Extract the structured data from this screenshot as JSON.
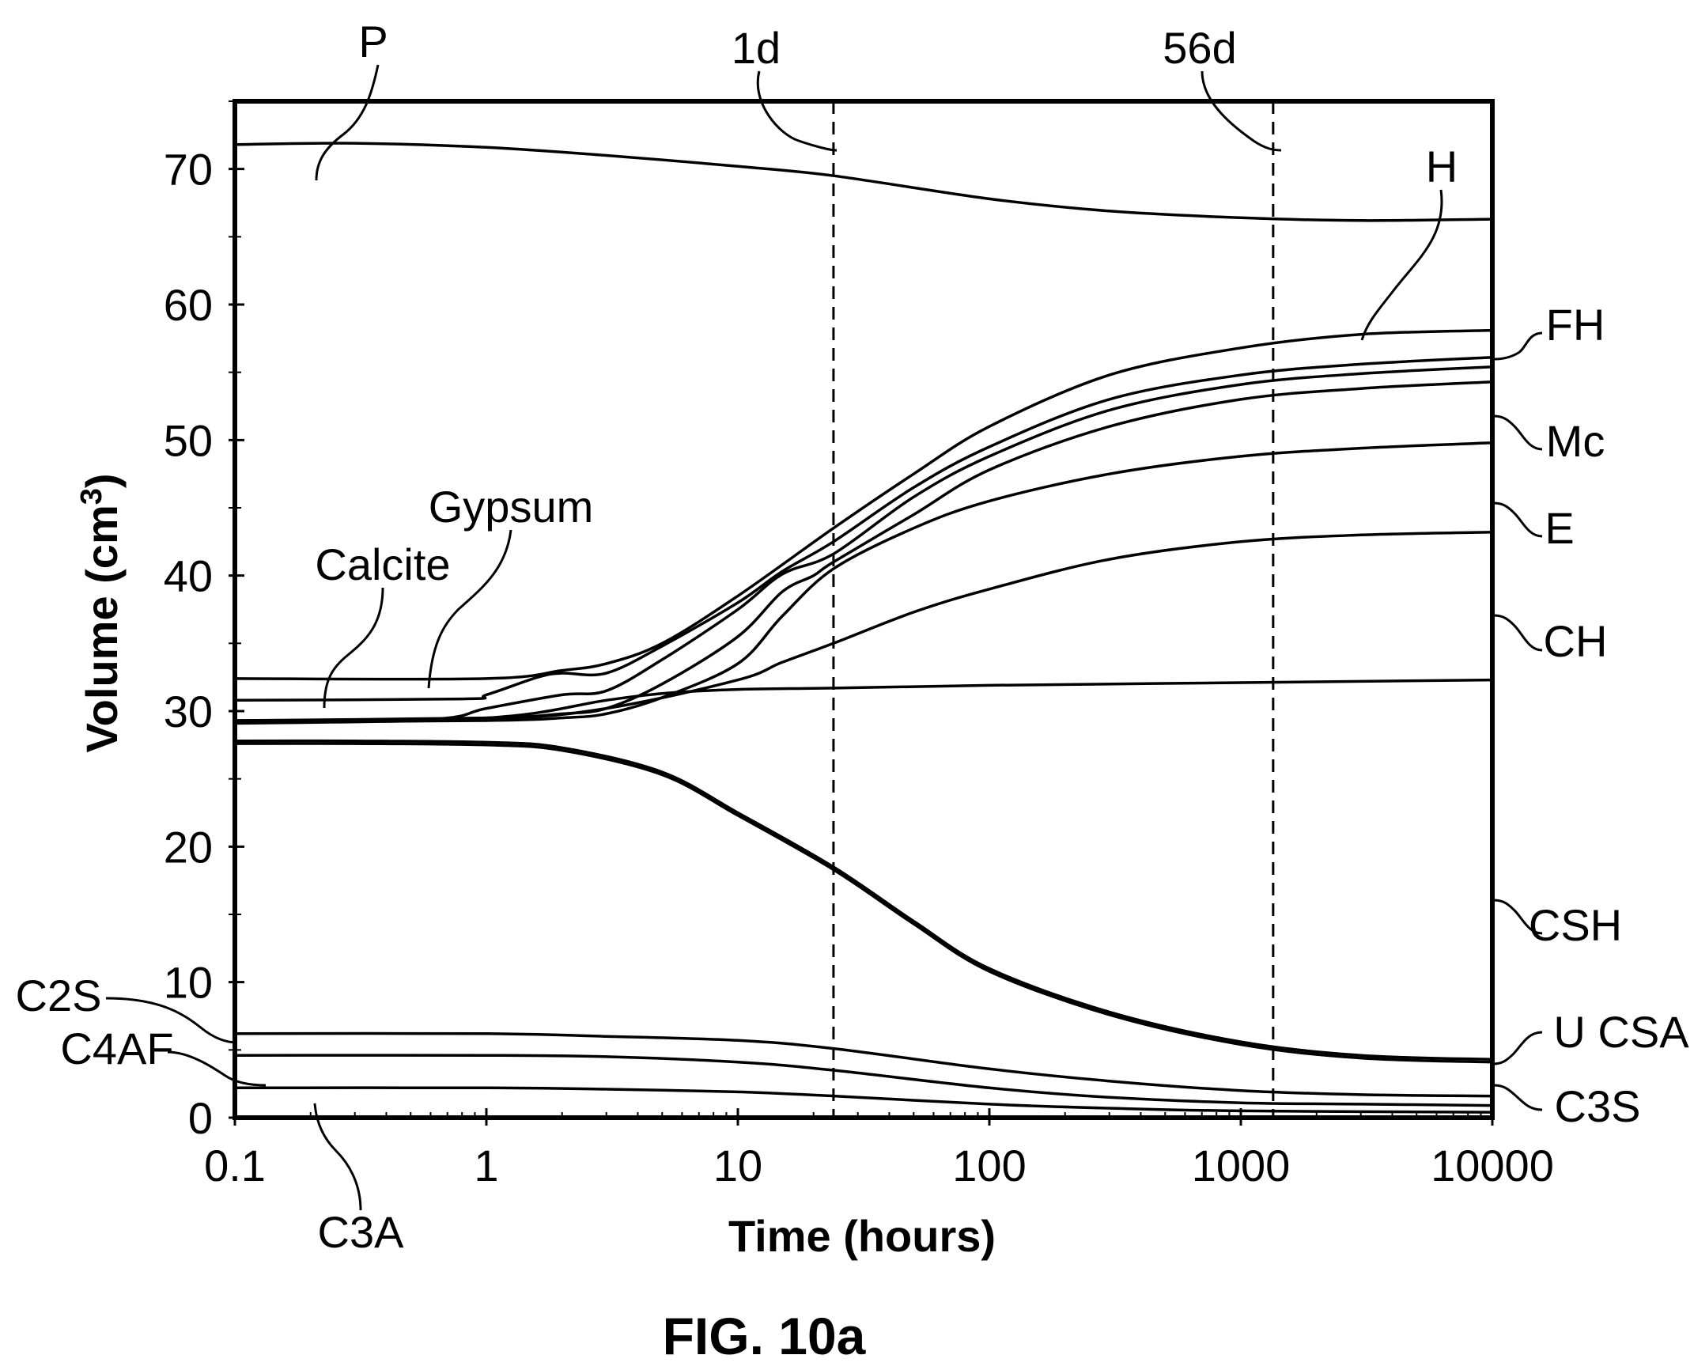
{
  "figure_label": "FIG. 10a",
  "chart_data": {
    "type": "line",
    "xlabel": "Time (hours)",
    "ylabel": "Volume (cm",
    "ylabel_sup": "3",
    "ylabel_close": ")",
    "x_scale": "log",
    "xlim": [
      0.1,
      10000
    ],
    "ylim": [
      0,
      75
    ],
    "x_ticks": [
      {
        "value": 0.1,
        "label": "0.1"
      },
      {
        "value": 1,
        "label": "1"
      },
      {
        "value": 10,
        "label": "10"
      },
      {
        "value": 100,
        "label": "100"
      },
      {
        "value": 1000,
        "label": "1000"
      },
      {
        "value": 10000,
        "label": "10000"
      }
    ],
    "y_ticks": [
      {
        "value": 0,
        "label": "0"
      },
      {
        "value": 10,
        "label": "10"
      },
      {
        "value": 20,
        "label": "20"
      },
      {
        "value": 30,
        "label": "30"
      },
      {
        "value": 40,
        "label": "40"
      },
      {
        "value": 50,
        "label": "50"
      },
      {
        "value": 60,
        "label": "60"
      },
      {
        "value": 70,
        "label": "70"
      }
    ],
    "y_minor_ticks": [
      5,
      15,
      25,
      35,
      45,
      55,
      65,
      75
    ],
    "grid": false,
    "line_color": "#000000",
    "vertical_markers": [
      {
        "x": 24,
        "label": "1d"
      },
      {
        "x": 1344,
        "label": "56d"
      }
    ],
    "curves": [
      {
        "name": "P",
        "points": [
          [
            0.1,
            71.8
          ],
          [
            0.3,
            71.9
          ],
          [
            1,
            71.6
          ],
          [
            3,
            71
          ],
          [
            10,
            70.2
          ],
          [
            24,
            69.5
          ],
          [
            100,
            67.8
          ],
          [
            300,
            66.9
          ],
          [
            1000,
            66.4
          ],
          [
            3000,
            66.2
          ],
          [
            10000,
            66.3
          ]
        ]
      },
      {
        "name": "H",
        "points": [
          [
            0.1,
            32.4
          ],
          [
            1,
            32.4
          ],
          [
            2,
            33
          ],
          [
            3,
            33.5
          ],
          [
            5,
            35
          ],
          [
            10,
            38.5
          ],
          [
            24,
            43.5
          ],
          [
            50,
            47.5
          ],
          [
            100,
            51
          ],
          [
            300,
            54.8
          ],
          [
            1000,
            56.8
          ],
          [
            3000,
            57.8
          ],
          [
            10000,
            58.1
          ]
        ]
      },
      {
        "name": "FH",
        "points": [
          [
            0.1,
            30.8
          ],
          [
            0.8,
            30.9
          ],
          [
            1,
            31.2
          ],
          [
            1.6,
            32.5
          ],
          [
            2,
            32.8
          ],
          [
            3,
            32.8
          ],
          [
            5,
            34.8
          ],
          [
            10,
            38
          ],
          [
            15,
            40.3
          ],
          [
            24,
            42.5
          ],
          [
            50,
            46.5
          ],
          [
            100,
            49.5
          ],
          [
            300,
            53
          ],
          [
            1000,
            54.8
          ],
          [
            3000,
            55.6
          ],
          [
            10000,
            56.1
          ]
        ]
      },
      {
        "name": "Mc",
        "points": [
          [
            0.1,
            29.3
          ],
          [
            0.6,
            29.4
          ],
          [
            1,
            30.2
          ],
          [
            2,
            31.2
          ],
          [
            3,
            31.5
          ],
          [
            5,
            33.8
          ],
          [
            10,
            37.5
          ],
          [
            15,
            40.1
          ],
          [
            24,
            41.6
          ],
          [
            50,
            45.8
          ],
          [
            100,
            48.8
          ],
          [
            300,
            52.2
          ],
          [
            1000,
            54.1
          ],
          [
            3000,
            54.9
          ],
          [
            10000,
            55.4
          ]
        ]
      },
      {
        "name": "E",
        "points": [
          [
            0.1,
            29.3
          ],
          [
            1,
            29.5
          ],
          [
            2,
            29.8
          ],
          [
            3,
            30.2
          ],
          [
            5,
            32
          ],
          [
            10,
            35.5
          ],
          [
            15,
            38.8
          ],
          [
            20,
            40
          ],
          [
            24,
            41
          ],
          [
            50,
            44.5
          ],
          [
            100,
            47.8
          ],
          [
            300,
            51
          ],
          [
            1000,
            53
          ],
          [
            3000,
            53.8
          ],
          [
            10000,
            54.3
          ]
        ]
      },
      {
        "name": "CH",
        "points": [
          [
            0.1,
            29.2
          ],
          [
            1,
            29.3
          ],
          [
            2,
            29.5
          ],
          [
            3,
            29.8
          ],
          [
            5,
            31
          ],
          [
            10,
            33.5
          ],
          [
            15,
            37
          ],
          [
            24,
            40.5
          ],
          [
            50,
            43.5
          ],
          [
            100,
            45.5
          ],
          [
            300,
            47.5
          ],
          [
            1000,
            48.8
          ],
          [
            3000,
            49.4
          ],
          [
            10000,
            49.8
          ]
        ]
      },
      {
        "name": "CSH",
        "points": [
          [
            0.1,
            29.1
          ],
          [
            1,
            29.4
          ],
          [
            3,
            30.2
          ],
          [
            10,
            32.3
          ],
          [
            15,
            33.6
          ],
          [
            24,
            35
          ],
          [
            50,
            37.3
          ],
          [
            100,
            39
          ],
          [
            300,
            41.2
          ],
          [
            1000,
            42.5
          ],
          [
            3000,
            43
          ],
          [
            10000,
            43.2
          ]
        ]
      },
      {
        "name": "Calcite",
        "points": [
          [
            0.1,
            29.2
          ],
          [
            1,
            29.5
          ],
          [
            3,
            30.8
          ],
          [
            5,
            31.3
          ],
          [
            10,
            31.6
          ],
          [
            24,
            31.7
          ],
          [
            100,
            31.9
          ],
          [
            1000,
            32.1
          ],
          [
            10000,
            32.3
          ]
        ]
      },
      {
        "name": "U CSA",
        "points": [
          [
            0.1,
            27.8
          ],
          [
            0.3,
            27.8
          ],
          [
            1,
            27.7
          ],
          [
            2,
            27.3
          ],
          [
            5,
            25.5
          ],
          [
            10,
            22.5
          ],
          [
            24,
            18.5
          ],
          [
            50,
            14.5
          ],
          [
            100,
            11
          ],
          [
            300,
            7.8
          ],
          [
            1000,
            5.6
          ],
          [
            3000,
            4.6
          ],
          [
            10000,
            4.3
          ]
        ]
      },
      {
        "name": "C3S",
        "points": [
          [
            0.1,
            27.6
          ],
          [
            0.3,
            27.6
          ],
          [
            1,
            27.5
          ],
          [
            2,
            27.1
          ],
          [
            5,
            25.3
          ],
          [
            10,
            22.3
          ],
          [
            24,
            18.3
          ],
          [
            50,
            14.3
          ],
          [
            100,
            10.8
          ],
          [
            300,
            7.6
          ],
          [
            1000,
            5.4
          ],
          [
            3000,
            4.4
          ],
          [
            10000,
            4.1
          ]
        ]
      },
      {
        "name": "C2S",
        "points": [
          [
            0.1,
            6.2
          ],
          [
            1,
            6.2
          ],
          [
            3,
            6
          ],
          [
            10,
            5.7
          ],
          [
            24,
            5.1
          ],
          [
            100,
            3.6
          ],
          [
            300,
            2.7
          ],
          [
            1000,
            2
          ],
          [
            3000,
            1.7
          ],
          [
            10000,
            1.6
          ]
        ]
      },
      {
        "name": "C4AF",
        "points": [
          [
            0.1,
            4.6
          ],
          [
            1,
            4.6
          ],
          [
            3,
            4.5
          ],
          [
            10,
            4.1
          ],
          [
            24,
            3.5
          ],
          [
            100,
            2.2
          ],
          [
            300,
            1.5
          ],
          [
            1000,
            1.1
          ],
          [
            3000,
            1
          ],
          [
            10000,
            0.9
          ]
        ]
      },
      {
        "name": "C3A",
        "points": [
          [
            0.1,
            2.2
          ],
          [
            1,
            2.2
          ],
          [
            3,
            2.1
          ],
          [
            10,
            1.9
          ],
          [
            24,
            1.6
          ],
          [
            100,
            1
          ],
          [
            300,
            0.7
          ],
          [
            1000,
            0.5
          ],
          [
            10000,
            0.4
          ]
        ]
      }
    ],
    "labels": [
      "P",
      "1d",
      "56d",
      "H",
      "FH",
      "Mc",
      "E",
      "CH",
      "CSH",
      "U CSA",
      "C3S",
      "Gypsum",
      "Calcite",
      "C2S",
      "C4AF",
      "C3A"
    ]
  }
}
